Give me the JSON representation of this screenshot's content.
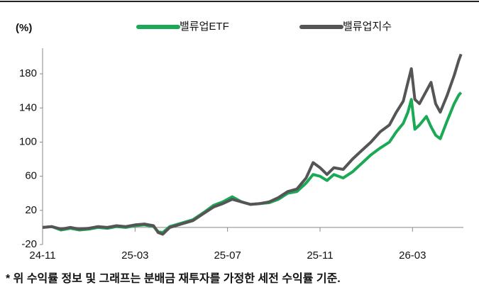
{
  "chart_data": {
    "type": "line",
    "y_axis_label": "(%)",
    "footnote": "* 위 수익률 정보 및 그래프는 분배금 재투자를 가정한 세전 수익률 기준.",
    "x": [
      0,
      0.4,
      0.8,
      1.2,
      1.6,
      2,
      2.4,
      2.8,
      3.2,
      3.6,
      4,
      4.4,
      4.8,
      5.0,
      5.2,
      5.5,
      6,
      6.5,
      7,
      7.4,
      7.8,
      8.2,
      8.6,
      9,
      9.4,
      9.8,
      10.2,
      10.6,
      11,
      11.4,
      11.7,
      12,
      12.3,
      12.6,
      13,
      13.4,
      13.8,
      14.2,
      14.6,
      15,
      15.3,
      15.6,
      15.8,
      15.95,
      16.1,
      16.3,
      16.6,
      16.8,
      17,
      17.2,
      17.5,
      17.8,
      18,
      18.1
    ],
    "series": [
      {
        "name": "밸류업ETF",
        "color": "#1aaa55",
        "values": [
          0,
          1,
          -3,
          -1,
          -3,
          -2,
          0,
          -1,
          1,
          0,
          2,
          3,
          1,
          -5,
          -6,
          1,
          5,
          9,
          18,
          26,
          30,
          36,
          30,
          27,
          28,
          29,
          33,
          40,
          42,
          52,
          62,
          60,
          55,
          62,
          58,
          65,
          75,
          85,
          93,
          100,
          112,
          122,
          135,
          150,
          115,
          120,
          130,
          118,
          108,
          104,
          125,
          145,
          155,
          158
        ]
      },
      {
        "name": "밸류업지수",
        "color": "#555555",
        "values": [
          0,
          1,
          -2,
          0,
          -2,
          -1,
          1,
          0,
          2,
          1,
          3,
          4,
          2,
          -6,
          -8,
          0,
          4,
          8,
          17,
          24,
          28,
          33,
          30,
          27,
          28,
          30,
          35,
          42,
          45,
          58,
          76,
          70,
          62,
          70,
          68,
          80,
          90,
          100,
          112,
          120,
          135,
          148,
          170,
          186,
          150,
          145,
          160,
          170,
          145,
          135,
          155,
          178,
          196,
          203
        ]
      }
    ],
    "xlim": [
      0,
      18.2
    ],
    "xticks": [
      {
        "value": 0,
        "label": "24-11"
      },
      {
        "value": 4,
        "label": "25-03"
      },
      {
        "value": 8,
        "label": "25-07"
      },
      {
        "value": 12,
        "label": "25-11"
      },
      {
        "value": 16,
        "label": "26-03"
      }
    ],
    "ylim": [
      -20,
      210
    ],
    "yticks": [
      -20,
      20,
      60,
      100,
      140,
      180
    ],
    "grid": false,
    "legend": "top"
  }
}
